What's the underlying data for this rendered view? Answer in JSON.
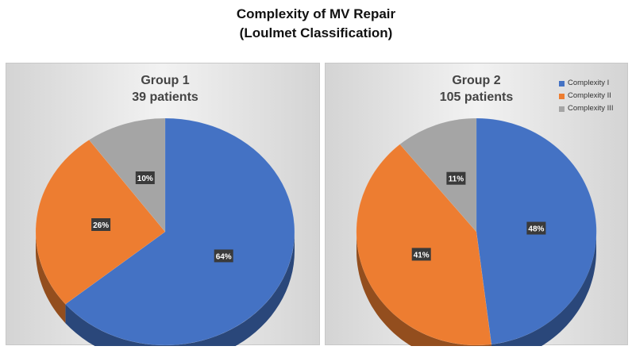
{
  "title_line1": "Complexity of MV Repair",
  "title_line2": "(Loulmet Classification)",
  "colors": {
    "complexity_1": "#4472C4",
    "complexity_2": "#ED7D31",
    "complexity_3": "#A5A5A5"
  },
  "legend": [
    "Complexity I",
    "Complexity II",
    "Complexity III"
  ],
  "chart_data": [
    {
      "type": "pie",
      "title": "Group 1",
      "subtitle": "39 patients",
      "categories": [
        "Complexity I",
        "Complexity II",
        "Complexity III"
      ],
      "values": [
        64,
        26,
        10
      ],
      "labels": [
        "64%",
        "26%",
        "10%"
      ]
    },
    {
      "type": "pie",
      "title": "Group 2",
      "subtitle": "105 patients",
      "categories": [
        "Complexity I",
        "Complexity II",
        "Complexity III"
      ],
      "values": [
        48,
        41,
        11
      ],
      "labels": [
        "48%",
        "41%",
        "11%"
      ],
      "legend_position": "top-right"
    }
  ]
}
